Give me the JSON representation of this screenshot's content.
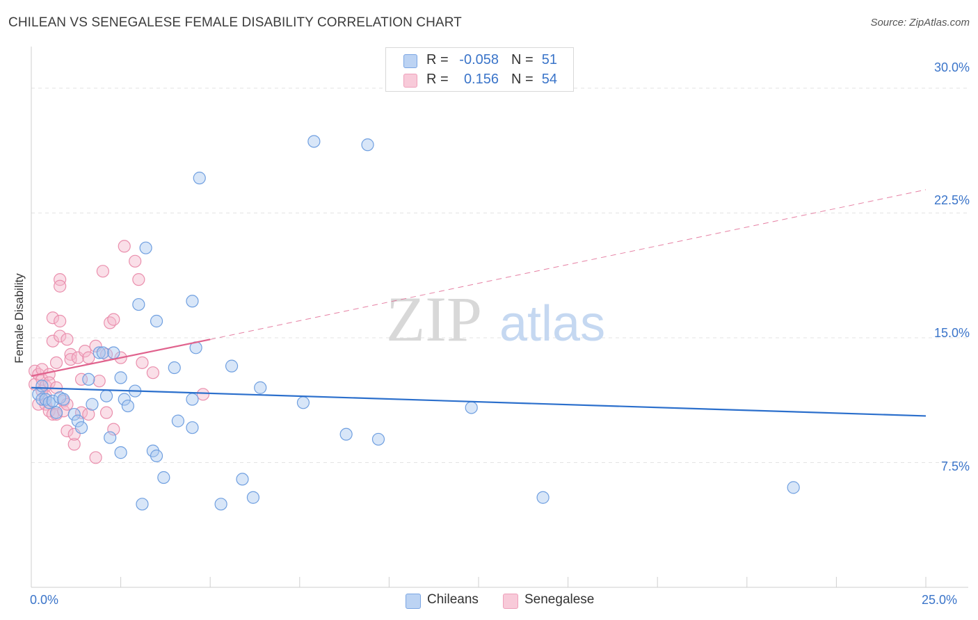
{
  "header": {
    "title": "CHILEAN VS SENEGALESE FEMALE DISABILITY CORRELATION CHART",
    "source": "Source: ZipAtlas.com"
  },
  "legend": {
    "series1": {
      "r_label": "R =",
      "r_value": "-0.058",
      "n_label": "N =",
      "n_value": "51"
    },
    "series2": {
      "r_label": "R =",
      "r_value": "0.156",
      "n_label": "N =",
      "n_value": "54"
    }
  },
  "axes": {
    "y_title": "Female Disability",
    "y_ticks": [
      "30.0%",
      "22.5%",
      "15.0%",
      "7.5%"
    ],
    "x_min_label": "0.0%",
    "x_max_label": "25.0%"
  },
  "watermark": {
    "zip": "ZIP",
    "atlas": "atlas"
  },
  "bottom_legend": {
    "item1": "Chileans",
    "item2": "Senegalese"
  },
  "colors": {
    "blue_fill": "#a9c7f0",
    "blue_stroke": "#6f9fe0",
    "blue_line": "#2b6fcc",
    "pink_fill": "#f5b7cb",
    "pink_stroke": "#ea8fad",
    "pink_line": "#e0628d",
    "grid": "#e3e3e3",
    "axis_text": "#3a74c9"
  },
  "chart_data": {
    "type": "scatter",
    "title": "CHILEAN VS SENEGALESE FEMALE DISABILITY CORRELATION CHART",
    "xlabel": "",
    "ylabel": "Female Disability",
    "xlim": [
      0,
      25
    ],
    "ylim": [
      0,
      32
    ],
    "y_gridlines": [
      7.5,
      15,
      22.5,
      30
    ],
    "series": [
      {
        "name": "Chileans",
        "color": "#a9c7f0",
        "r": -0.058,
        "n": 51,
        "trend": {
          "x": [
            0,
            25
          ],
          "y": [
            12.0,
            10.3
          ]
        },
        "points": [
          [
            0.2,
            11.6
          ],
          [
            0.3,
            12.1
          ],
          [
            0.3,
            11.3
          ],
          [
            0.4,
            11.3
          ],
          [
            0.5,
            11.1
          ],
          [
            0.6,
            11.2
          ],
          [
            0.7,
            10.5
          ],
          [
            0.8,
            11.4
          ],
          [
            0.9,
            11.3
          ],
          [
            1.2,
            10.4
          ],
          [
            1.3,
            10.0
          ],
          [
            1.4,
            9.6
          ],
          [
            1.6,
            12.5
          ],
          [
            1.7,
            11.0
          ],
          [
            1.9,
            14.1
          ],
          [
            2.0,
            14.1
          ],
          [
            2.1,
            11.5
          ],
          [
            2.2,
            9.0
          ],
          [
            2.3,
            14.1
          ],
          [
            2.5,
            8.1
          ],
          [
            2.5,
            12.6
          ],
          [
            2.6,
            11.3
          ],
          [
            2.7,
            10.9
          ],
          [
            2.9,
            11.8
          ],
          [
            3.0,
            17.0
          ],
          [
            3.1,
            5.0
          ],
          [
            3.2,
            20.4
          ],
          [
            3.4,
            8.2
          ],
          [
            3.5,
            7.9
          ],
          [
            3.5,
            16.0
          ],
          [
            3.7,
            6.6
          ],
          [
            4.0,
            13.2
          ],
          [
            4.1,
            10.0
          ],
          [
            4.5,
            9.6
          ],
          [
            4.5,
            11.3
          ],
          [
            4.5,
            17.2
          ],
          [
            4.6,
            14.4
          ],
          [
            4.7,
            24.6
          ],
          [
            5.3,
            5.0
          ],
          [
            5.6,
            13.3
          ],
          [
            5.9,
            6.5
          ],
          [
            6.2,
            5.4
          ],
          [
            6.4,
            12.0
          ],
          [
            7.6,
            11.1
          ],
          [
            7.9,
            26.8
          ],
          [
            8.8,
            9.2
          ],
          [
            9.4,
            26.6
          ],
          [
            9.7,
            8.9
          ],
          [
            12.3,
            10.8
          ],
          [
            14.3,
            5.4
          ],
          [
            21.3,
            6.0
          ]
        ]
      },
      {
        "name": "Senegalese",
        "color": "#f5b7cb",
        "r": 0.156,
        "n": 54,
        "trend": {
          "x": [
            0,
            5
          ],
          "y": [
            12.7,
            14.9
          ],
          "dashed_extension": {
            "x": [
              5,
              25
            ],
            "y": [
              14.9,
              23.9
            ]
          }
        },
        "points": [
          [
            0.1,
            13.0
          ],
          [
            0.1,
            12.2
          ],
          [
            0.2,
            12.8
          ],
          [
            0.2,
            11.0
          ],
          [
            0.3,
            13.1
          ],
          [
            0.3,
            12.5
          ],
          [
            0.3,
            11.8
          ],
          [
            0.4,
            12.1
          ],
          [
            0.4,
            11.5
          ],
          [
            0.4,
            11.0
          ],
          [
            0.5,
            12.8
          ],
          [
            0.5,
            12.3
          ],
          [
            0.5,
            10.6
          ],
          [
            0.6,
            16.2
          ],
          [
            0.6,
            14.8
          ],
          [
            0.6,
            10.4
          ],
          [
            0.7,
            13.5
          ],
          [
            0.7,
            12.0
          ],
          [
            0.7,
            10.4
          ],
          [
            0.8,
            18.5
          ],
          [
            0.8,
            18.1
          ],
          [
            0.8,
            15.1
          ],
          [
            0.8,
            16.0
          ],
          [
            0.9,
            11.2
          ],
          [
            0.9,
            10.6
          ],
          [
            1.0,
            9.4
          ],
          [
            1.0,
            11.0
          ],
          [
            1.0,
            14.9
          ],
          [
            1.1,
            14.0
          ],
          [
            1.1,
            13.7
          ],
          [
            1.2,
            8.6
          ],
          [
            1.2,
            9.2
          ],
          [
            1.3,
            13.8
          ],
          [
            1.4,
            12.5
          ],
          [
            1.4,
            10.5
          ],
          [
            1.5,
            14.2
          ],
          [
            1.6,
            10.4
          ],
          [
            1.6,
            13.8
          ],
          [
            1.8,
            7.8
          ],
          [
            1.8,
            14.5
          ],
          [
            1.9,
            12.4
          ],
          [
            2.0,
            19.0
          ],
          [
            2.1,
            14.0
          ],
          [
            2.1,
            10.5
          ],
          [
            2.2,
            15.9
          ],
          [
            2.3,
            16.1
          ],
          [
            2.3,
            9.5
          ],
          [
            2.5,
            13.8
          ],
          [
            2.6,
            20.5
          ],
          [
            2.9,
            19.6
          ],
          [
            3.0,
            18.5
          ],
          [
            3.1,
            13.5
          ],
          [
            3.4,
            12.9
          ],
          [
            4.8,
            11.6
          ]
        ]
      }
    ]
  }
}
